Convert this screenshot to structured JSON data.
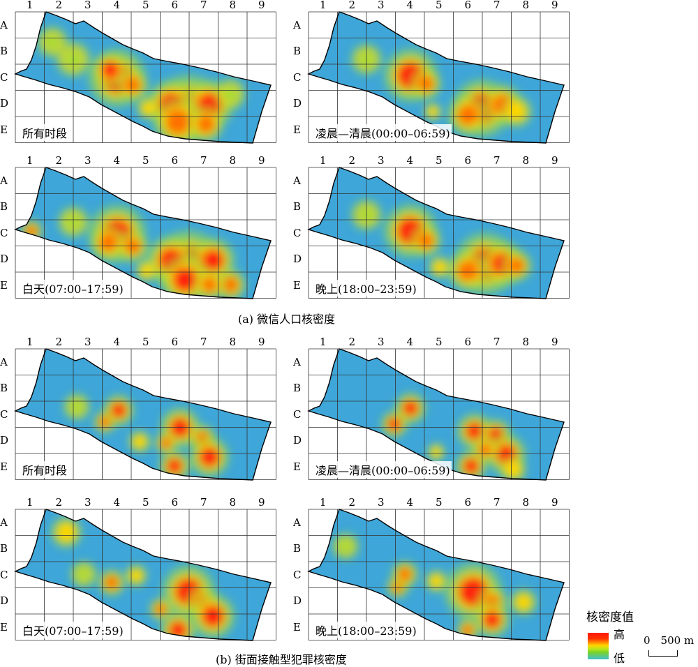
{
  "columns": [
    "1",
    "2",
    "3",
    "4",
    "5",
    "6",
    "7",
    "8",
    "9"
  ],
  "rows": [
    "A",
    "B",
    "C",
    "D",
    "E"
  ],
  "section_a": {
    "caption": "(a) 微信人口核密度"
  },
  "section_b": {
    "caption": "(b) 街面接触型犯罪核密度"
  },
  "panels": {
    "a1": {
      "label": "所有时段"
    },
    "a2": {
      "label": "凌晨—清晨(00:00–06:59)"
    },
    "a3": {
      "label": "白天(07:00–17:59)"
    },
    "a4": {
      "label": "晚上(18:00–23:59)"
    },
    "b1": {
      "label": "所有时段"
    },
    "b2": {
      "label": "凌晨—清晨(00:00–06:59)"
    },
    "b3": {
      "label": "白天(07:00–17:59)"
    },
    "b4": {
      "label": "晚上(18:00–23:59)"
    }
  },
  "legend": {
    "title": "核密度值",
    "high": "高",
    "low": "低"
  },
  "scale": {
    "label": "0　500 m"
  },
  "colors": {
    "high": "#ff1a0a",
    "mid": "#ffd600",
    "low": "#3fbfd0",
    "base": "#3ea6d8"
  }
}
